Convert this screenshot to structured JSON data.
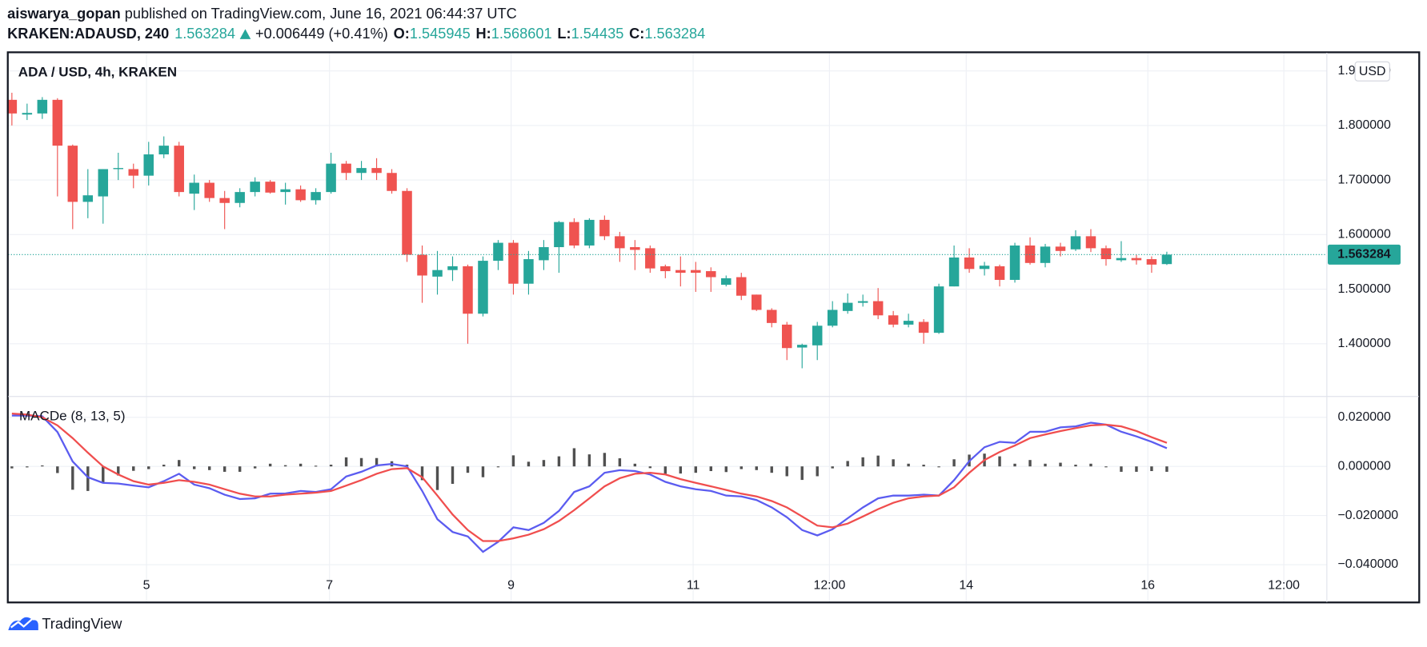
{
  "header": {
    "author": "aiswarya_gopan",
    "published": " published on TradingView.com, June 16, 2021 06:44:37 UTC",
    "symbol": "KRAKEN:ADAUSD, 240",
    "change": "+0.006449 (+0.41%)",
    "o_label": "O:",
    "h_label": "H:",
    "l_label": "L:",
    "c_label": "C:"
  },
  "footer": {
    "brand": "TradingView"
  },
  "chart_data": [
    {
      "type": "candlestick",
      "title": "ADA / USD, 4h, KRAKEN",
      "currency": "USD",
      "up_color": "#26a69a",
      "down_color": "#ef5350",
      "grid": true,
      "ylim": [
        1.3033,
        1.9333
      ],
      "yticks": [
        {
          "value": 1.4,
          "label": "1.400000"
        },
        {
          "value": 1.5,
          "label": "1.500000"
        },
        {
          "value": 1.6,
          "label": "1.600000"
        },
        {
          "value": 1.7,
          "label": "1.700000"
        },
        {
          "value": 1.8,
          "label": "1.800000"
        },
        {
          "value": 1.9,
          "label": "1.900000"
        }
      ],
      "open": [
        1.847,
        1.82,
        1.822,
        1.847,
        1.763,
        1.66,
        1.67,
        1.72,
        1.72,
        1.708,
        1.747,
        1.763,
        1.675,
        1.695,
        1.667,
        1.658,
        1.678,
        1.697,
        1.678,
        1.683,
        1.663,
        1.678,
        1.73,
        1.713,
        1.722,
        1.713,
        1.68,
        1.563,
        1.523,
        1.535,
        1.542,
        1.455,
        1.552,
        1.585,
        1.51,
        1.553,
        1.577,
        1.623,
        1.58,
        1.627,
        1.597,
        1.577,
        1.575,
        1.542,
        1.535,
        1.535,
        1.533,
        1.508,
        1.522,
        1.49,
        1.462,
        1.435,
        1.393,
        1.397,
        1.433,
        1.46,
        1.475,
        1.478,
        1.452,
        1.435,
        1.44,
        1.42,
        1.505,
        1.558,
        1.537,
        1.542,
        1.517,
        1.58,
        1.548,
        1.578,
        1.573,
        1.597,
        1.575,
        1.553,
        1.557,
        1.555,
        1.545945
      ],
      "high": [
        1.86,
        1.84,
        1.852,
        1.85,
        1.765,
        1.72,
        1.72,
        1.75,
        1.73,
        1.77,
        1.78,
        1.77,
        1.71,
        1.7,
        1.68,
        1.685,
        1.705,
        1.7,
        1.695,
        1.69,
        1.685,
        1.75,
        1.735,
        1.735,
        1.74,
        1.72,
        1.685,
        1.58,
        1.57,
        1.56,
        1.545,
        1.56,
        1.59,
        1.59,
        1.57,
        1.59,
        1.625,
        1.63,
        1.63,
        1.635,
        1.605,
        1.59,
        1.58,
        1.545,
        1.56,
        1.55,
        1.54,
        1.525,
        1.53,
        1.49,
        1.465,
        1.44,
        1.4,
        1.44,
        1.478,
        1.492,
        1.49,
        1.502,
        1.46,
        1.455,
        1.445,
        1.51,
        1.58,
        1.575,
        1.55,
        1.545,
        1.585,
        1.595,
        1.583,
        1.585,
        1.608,
        1.61,
        1.58,
        1.588,
        1.563,
        1.56,
        1.568601
      ],
      "low": [
        1.8,
        1.81,
        1.812,
        1.67,
        1.61,
        1.63,
        1.62,
        1.7,
        1.685,
        1.69,
        1.74,
        1.67,
        1.645,
        1.66,
        1.61,
        1.65,
        1.67,
        1.675,
        1.655,
        1.66,
        1.655,
        1.675,
        1.7,
        1.7,
        1.7,
        1.675,
        1.55,
        1.475,
        1.49,
        1.515,
        1.4,
        1.45,
        1.535,
        1.49,
        1.49,
        1.535,
        1.53,
        1.575,
        1.575,
        1.59,
        1.55,
        1.535,
        1.53,
        1.52,
        1.505,
        1.495,
        1.495,
        1.505,
        1.48,
        1.46,
        1.43,
        1.37,
        1.355,
        1.37,
        1.43,
        1.455,
        1.468,
        1.445,
        1.43,
        1.43,
        1.4,
        1.418,
        1.505,
        1.53,
        1.525,
        1.505,
        1.512,
        1.545,
        1.54,
        1.56,
        1.57,
        1.568,
        1.543,
        1.55,
        1.545,
        1.53,
        1.54435
      ],
      "close": [
        1.822,
        1.823,
        1.847,
        1.763,
        1.66,
        1.672,
        1.72,
        1.722,
        1.708,
        1.747,
        1.763,
        1.678,
        1.695,
        1.667,
        1.658,
        1.678,
        1.697,
        1.677,
        1.683,
        1.663,
        1.678,
        1.73,
        1.713,
        1.722,
        1.713,
        1.68,
        1.563,
        1.525,
        1.535,
        1.542,
        1.455,
        1.552,
        1.585,
        1.51,
        1.555,
        1.577,
        1.623,
        1.58,
        1.627,
        1.597,
        1.575,
        1.572,
        1.538,
        1.533,
        1.53,
        1.53,
        1.522,
        1.52,
        1.488,
        1.462,
        1.438,
        1.392,
        1.398,
        1.433,
        1.462,
        1.475,
        1.478,
        1.452,
        1.435,
        1.442,
        1.42,
        1.505,
        1.558,
        1.537,
        1.543,
        1.517,
        1.58,
        1.548,
        1.578,
        1.57,
        1.597,
        1.575,
        1.555,
        1.557,
        1.553,
        1.545,
        1.563284
      ]
    },
    {
      "type": "macd",
      "title": "MACDe (8, 13, 5)",
      "grid": true,
      "xlim": [
        -0.24,
        86.53
      ],
      "xticks": [
        {
          "value": 8.86,
          "label": "5"
        },
        {
          "value": 20.9,
          "label": "7"
        },
        {
          "value": 32.85,
          "label": "9"
        },
        {
          "value": 44.83,
          "label": "11"
        },
        {
          "value": 53.8,
          "label": "12:00"
        },
        {
          "value": 62.8,
          "label": "14"
        },
        {
          "value": 74.75,
          "label": "16"
        },
        {
          "value": 83.7,
          "label": "12:00"
        }
      ],
      "ylim": [
        -0.0552,
        0.0281
      ],
      "yticks": [
        {
          "value": -0.04,
          "label": "−0.040000"
        },
        {
          "value": -0.02,
          "label": "−0.020000"
        },
        {
          "value": 0,
          "label": "0.000000"
        },
        {
          "value": 0.02,
          "label": "0.020000"
        }
      ],
      "series": [
        {
          "color": "#5b5cf0",
          "values": [
            0.0207,
            0.0207,
            0.0204,
            0.014,
            0.002,
            -0.0044,
            -0.0067,
            -0.007,
            -0.0078,
            -0.0085,
            -0.006,
            -0.003,
            -0.0074,
            -0.0089,
            -0.0115,
            -0.0133,
            -0.013,
            -0.0111,
            -0.011,
            -0.01,
            -0.0104,
            -0.0093,
            -0.0041,
            -0.0022,
            0.0004,
            0.001,
            0,
            -0.01,
            -0.0215,
            -0.0267,
            -0.0285,
            -0.0348,
            -0.0307,
            -0.0248,
            -0.0259,
            -0.023,
            -0.0181,
            -0.0104,
            -0.0081,
            -0.0026,
            -0.0015,
            -0.0019,
            -0.0033,
            -0.0063,
            -0.0081,
            -0.0093,
            -0.01,
            -0.0119,
            -0.0122,
            -0.0137,
            -0.0167,
            -0.0207,
            -0.0259,
            -0.0281,
            -0.0256,
            -0.0211,
            -0.0167,
            -0.013,
            -0.0119,
            -0.0119,
            -0.0115,
            -0.0119,
            -0.0056,
            0.0022,
            0.0078,
            0.01,
            0.0096,
            0.0141,
            0.0141,
            0.0159,
            0.0163,
            0.0178,
            0.017,
            0.0141,
            0.0122,
            0.01,
            0.0074
          ]
        },
        {
          "color": "#f04e4e",
          "values": [
            0.0215,
            0.0211,
            0.02,
            0.0167,
            0.0115,
            0.0056,
            0,
            -0.0033,
            -0.006,
            -0.0074,
            -0.0067,
            -0.0056,
            -0.0063,
            -0.0074,
            -0.0093,
            -0.0111,
            -0.0122,
            -0.0122,
            -0.0115,
            -0.0111,
            -0.0107,
            -0.01,
            -0.0078,
            -0.0056,
            -0.003,
            -0.0011,
            -0.0007,
            -0.0044,
            -0.0119,
            -0.0196,
            -0.0259,
            -0.0304,
            -0.0304,
            -0.0293,
            -0.0278,
            -0.0256,
            -0.0222,
            -0.0178,
            -0.013,
            -0.0081,
            -0.0048,
            -0.003,
            -0.0026,
            -0.0033,
            -0.0052,
            -0.0067,
            -0.0081,
            -0.0096,
            -0.0111,
            -0.0122,
            -0.0141,
            -0.0167,
            -0.0204,
            -0.0241,
            -0.0248,
            -0.0233,
            -0.0204,
            -0.0174,
            -0.0148,
            -0.013,
            -0.0122,
            -0.0119,
            -0.0085,
            -0.0026,
            0.0026,
            0.0059,
            0.0085,
            0.0115,
            0.013,
            0.0144,
            0.0156,
            0.0167,
            0.017,
            0.0163,
            0.0144,
            0.0119,
            0.0096
          ]
        }
      ],
      "histogram": {
        "color": "#505050",
        "values": [
          -0.0008,
          -0.0004,
          0.0004,
          -0.0027,
          -0.0095,
          -0.01,
          -0.0067,
          -0.0037,
          -0.0018,
          -0.0011,
          0.0007,
          0.0026,
          -0.0011,
          -0.0015,
          -0.0022,
          -0.0022,
          -0.0008,
          0.0011,
          0.0005,
          0.0011,
          0.0003,
          0.0007,
          0.0037,
          0.0034,
          0.0034,
          0.0021,
          0.0007,
          -0.0056,
          -0.0096,
          -0.0071,
          -0.0026,
          -0.0044,
          -0.0003,
          0.0045,
          0.0019,
          0.0026,
          0.0041,
          0.0074,
          0.0049,
          0.0055,
          0.0033,
          0.0011,
          -0.0007,
          -0.003,
          -0.0029,
          -0.0026,
          -0.0019,
          -0.0023,
          -0.0011,
          -0.0015,
          -0.0026,
          -0.004,
          -0.0055,
          -0.004,
          -0.0008,
          0.0022,
          0.0037,
          0.0044,
          0.0029,
          0.0011,
          0.0007,
          0,
          0.0029,
          0.0048,
          0.0052,
          0.0041,
          0.0011,
          0.0026,
          0.0011,
          0.0015,
          0.0007,
          0.0011,
          0,
          -0.0022,
          -0.0022,
          -0.0019,
          -0.0022
        ]
      }
    }
  ]
}
